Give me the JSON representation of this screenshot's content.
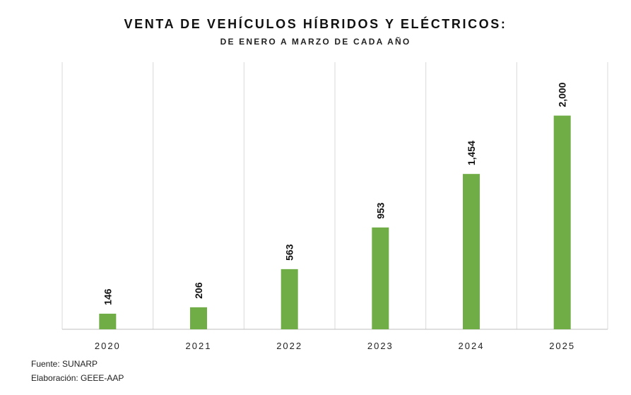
{
  "chart_data": {
    "type": "bar",
    "title": "VENTA DE VEHÍCULOS HÍBRIDOS Y ELÉCTRICOS:",
    "subtitle": "DE ENERO A MARZO DE CADA AÑO",
    "categories": [
      "2020",
      "2021",
      "2022",
      "2023",
      "2024",
      "2025"
    ],
    "values": [
      146,
      206,
      563,
      953,
      1454,
      2000
    ],
    "value_labels": [
      "146",
      "206",
      "563",
      "953",
      "1,454",
      "2,000"
    ],
    "ylim": [
      0,
      2500
    ],
    "grid": "vertical",
    "legend": "none",
    "bar_color": "#70ad47"
  },
  "footnotes": {
    "source": "Fuente: SUNARP",
    "credit": "Elaboración: GEEE-AAP"
  }
}
